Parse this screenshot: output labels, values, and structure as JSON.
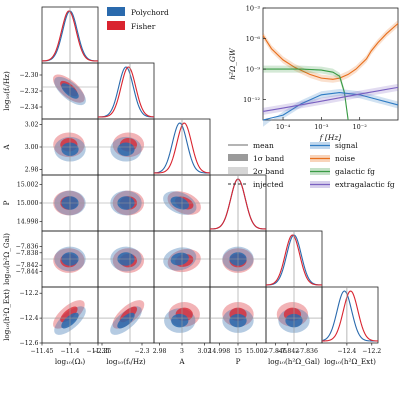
{
  "figure_legend": [
    {
      "name": "Polychord",
      "color": "#2a6aad"
    },
    {
      "name": "Fisher",
      "color": "#d9242f"
    }
  ],
  "band_legend": [
    {
      "label": "mean",
      "style": "line"
    },
    {
      "label": "1σ band",
      "style": "dark-band"
    },
    {
      "label": "2σ band",
      "style": "light-band"
    },
    {
      "label": "injected",
      "style": "dashed"
    }
  ],
  "component_legend": [
    {
      "label": "signal",
      "color": "#2f7cc4"
    },
    {
      "label": "noise",
      "color": "#e8701e"
    },
    {
      "label": "galactic fg",
      "color": "#3a9b45"
    },
    {
      "label": "extragalactic fg",
      "color": "#7a60c0"
    }
  ],
  "chart_data": [
    {
      "type": "corner",
      "parameters": [
        "log10(Ω_t)",
        "log10(f_t/Hz)",
        "A",
        "P",
        "log10(h²Ω_Gal)",
        "log10(h²Ω_Ext)"
      ],
      "ylabels": [
        "",
        "log₁₀(fₜ/Hz)",
        "A",
        "P",
        "log₁₀(h²Ω_Gal)",
        "log₁₀(h²Ω_Ext)"
      ],
      "xlabels": [
        "log₁₀(Ωₜ)",
        "log₁₀(fₜ/Hz)",
        "A",
        "P",
        "log₁₀(h²Ω_Gal)",
        "log₁₀(h²Ω_Ext)"
      ],
      "injected": [
        -11.4,
        -2.315,
        3.0,
        15.0,
        -7.84,
        -12.4
      ],
      "ranges": [
        [
          -11.45,
          -11.35
        ],
        [
          -2.355,
          -2.285
        ],
        [
          2.975,
          3.025
        ],
        [
          14.997,
          15.003
        ],
        [
          -7.849,
          -7.831
        ],
        [
          -12.6,
          -12.15
        ]
      ],
      "ticks": [
        {
          "values": [
            -11.45,
            -11.4,
            -11.35
          ],
          "labels": [
            "−11.45",
            "−11.4",
            "−11.35"
          ]
        },
        {
          "values": [
            -2.35,
            -2.3
          ],
          "labels": [
            "−2.35",
            "−2.3"
          ]
        },
        {
          "values": [
            2.98,
            3.0,
            3.02
          ],
          "labels": [
            "2.98",
            "3",
            "3.02"
          ]
        },
        {
          "values": [
            14.998,
            15.0,
            15.002
          ],
          "labels": [
            "14.998",
            "15",
            "15.002"
          ]
        },
        {
          "values": [
            -7.846,
            -7.842,
            -7.836
          ],
          "labels": [
            "−7.846",
            "−7.842",
            "−7.836"
          ]
        },
        {
          "values": [
            -12.4,
            -12.2
          ],
          "labels": [
            "−12.4",
            "−12.2"
          ]
        }
      ],
      "yticks": [
        null,
        {
          "values": [
            -2.3,
            -2.32,
            -2.34
          ],
          "labels": [
            "−2.30",
            "−2.32",
            "−2.34"
          ]
        },
        {
          "values": [
            3.02,
            3.0,
            2.98
          ],
          "labels": [
            "3.02",
            "3.00",
            "2.98"
          ]
        },
        {
          "values": [
            15.002,
            15.0,
            14.998
          ],
          "labels": [
            "15.002",
            "15.000",
            "14.998"
          ]
        },
        {
          "values": [
            -7.836,
            -7.838,
            -7.842,
            -7.844
          ],
          "labels": [
            "−7.836",
            "−7.838",
            "−7.842",
            "−7.844"
          ]
        },
        {
          "values": [
            -12.2,
            -12.4,
            -12.6
          ],
          "labels": [
            "−12.2",
            "−12.4",
            "−12.6"
          ]
        }
      ],
      "series": [
        {
          "name": "Polychord",
          "color": "#2a6aad",
          "means": [
            -11.4,
            -2.32,
            2.998,
            15.0,
            -7.84,
            -12.42
          ]
        },
        {
          "name": "Fisher",
          "color": "#d9242f",
          "means": [
            -11.402,
            -2.317,
            3.002,
            15.0,
            -7.8405,
            -12.37
          ]
        }
      ]
    },
    {
      "type": "line",
      "xlabel": "f [Hz]",
      "ylabel": "h²Ω_GW",
      "xscale": "log",
      "yscale": "log",
      "xlim": [
        3e-05,
        0.1
      ],
      "ylim": [
        1e-14,
        0.001
      ],
      "xticks": {
        "values": [
          0.0001,
          0.001,
          0.01
        ],
        "labels": [
          "10⁻⁴",
          "10⁻³",
          "10⁻²"
        ]
      },
      "yticks": {
        "values": [
          0.001,
          1e-06,
          1e-09,
          1e-12
        ],
        "labels": [
          "10⁻³",
          "10⁻⁶",
          "10⁻⁹",
          "10⁻¹²"
        ]
      },
      "series": [
        {
          "name": "noise",
          "color": "#e8701e",
          "x": [
            3e-05,
            5e-05,
            0.0001,
            0.0002,
            0.0005,
            0.001,
            0.002,
            0.003,
            0.005,
            0.008,
            0.015,
            0.02,
            0.03,
            0.05,
            0.1
          ],
          "y": [
            2e-06,
            1e-07,
            8e-09,
            1.5e-09,
            3e-10,
            1.3e-10,
            1e-10,
            1.3e-10,
            3e-10,
            1e-09,
            1e-08,
            6e-08,
            4e-07,
            3e-06,
            3e-05
          ]
        },
        {
          "name": "galactic fg",
          "color": "#3a9b45",
          "x": [
            3e-05,
            0.0001,
            0.0003,
            0.001,
            0.002,
            0.003,
            0.004,
            0.005
          ],
          "y": [
            1e-09,
            1e-09,
            1e-09,
            8e-10,
            5e-10,
            2e-10,
            5e-12,
            1e-14
          ]
        },
        {
          "name": "signal",
          "color": "#2f7cc4",
          "x": [
            3e-05,
            0.0001,
            0.0003,
            0.001,
            0.003,
            0.01,
            0.03,
            0.1
          ],
          "y": [
            1e-15,
            3e-14,
            4e-13,
            3e-12,
            5e-12,
            3e-12,
            1e-12,
            3e-13
          ]
        },
        {
          "name": "extragalactic fg",
          "color": "#7a60c0",
          "x": [
            3e-05,
            0.0001,
            0.001,
            0.01,
            0.1
          ],
          "y": [
            7e-14,
            1.5e-13,
            7e-13,
            3.5e-12,
            1.6e-11
          ]
        }
      ]
    }
  ]
}
